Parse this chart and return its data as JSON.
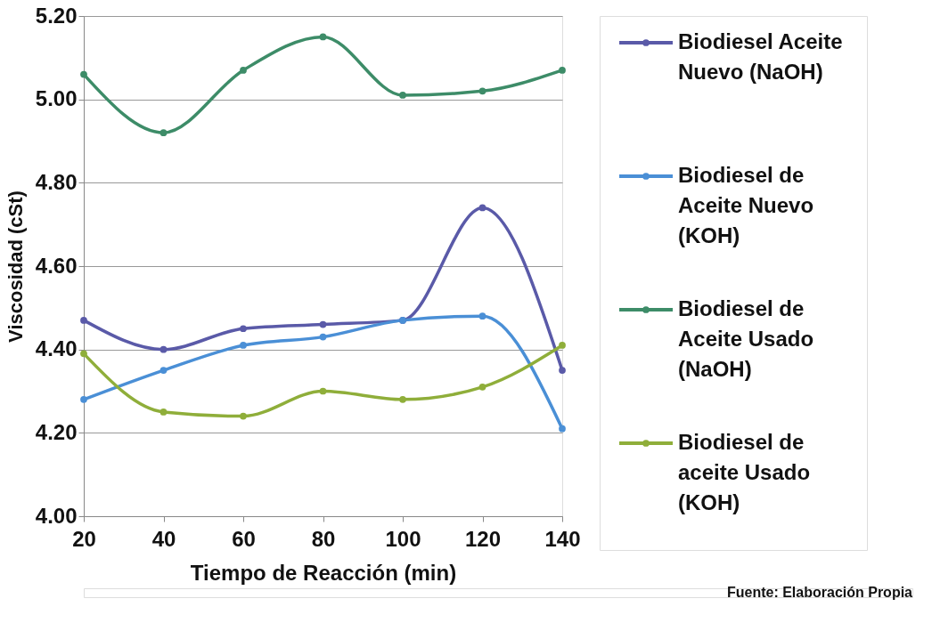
{
  "chart_data": {
    "type": "line",
    "xlabel": "Tiempo de Reacción (min)",
    "ylabel": "Viscosidad (cSt)",
    "x": [
      20,
      40,
      60,
      80,
      100,
      120,
      140
    ],
    "series": [
      {
        "name": "Biodiesel Aceite Nuevo (NaOH)",
        "color": "#5a5aa8",
        "values": [
          4.47,
          4.4,
          4.45,
          4.46,
          4.47,
          4.74,
          4.35
        ]
      },
      {
        "name": "Biodiesel de Aceite Nuevo (KOH)",
        "color": "#4a8fd6",
        "values": [
          4.28,
          4.35,
          4.41,
          4.43,
          4.47,
          4.48,
          4.21
        ]
      },
      {
        "name": "Biodiesel de Aceite Usado (NaOH)",
        "color": "#3d8c68",
        "values": [
          5.06,
          4.92,
          5.07,
          5.15,
          5.01,
          5.02,
          5.07
        ]
      },
      {
        "name": "Biodiesel de aceite Usado (KOH)",
        "color": "#8fae3a",
        "values": [
          4.39,
          4.25,
          4.24,
          4.3,
          4.28,
          4.31,
          4.41
        ]
      }
    ],
    "xlim": [
      20,
      140
    ],
    "xticks": [
      20,
      40,
      60,
      80,
      100,
      120,
      140
    ],
    "ylim": [
      4.0,
      5.2
    ],
    "yticks": [
      {
        "value": 4.0,
        "label": "4.00"
      },
      {
        "value": 4.2,
        "label": "4.20"
      },
      {
        "value": 4.4,
        "label": "4.40"
      },
      {
        "value": 4.6,
        "label": "4.60"
      },
      {
        "value": 4.8,
        "label": "4.80"
      },
      {
        "value": 5.0,
        "label": "5.00"
      },
      {
        "value": 5.2,
        "label": "5.20"
      }
    ],
    "grid": "y",
    "legend": "right",
    "marker": "circle",
    "line_style": "solid",
    "annotations": [
      "Fuente: Elaboración Propia"
    ]
  }
}
